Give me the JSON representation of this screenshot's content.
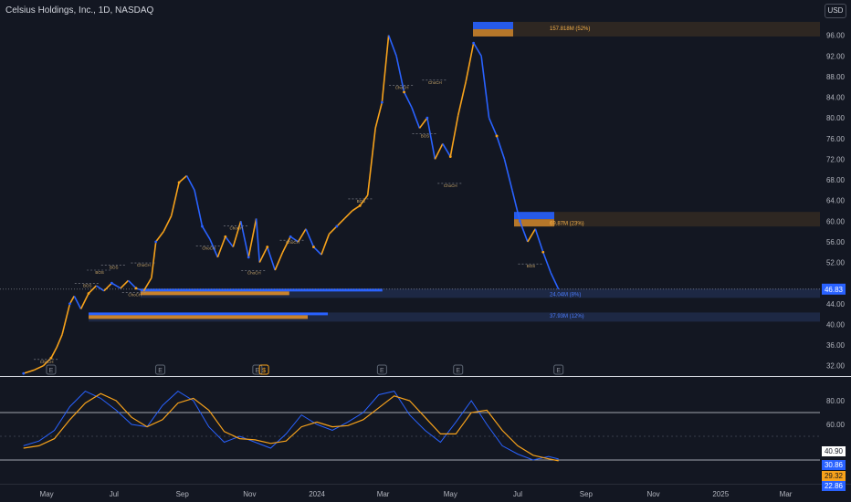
{
  "header": {
    "title": "Celsius Holdings, Inc., 1D, NASDAQ",
    "currency": "USD"
  },
  "chart_data": [
    {
      "type": "line",
      "title": "Celsius Holdings, Inc., 1D, NASDAQ",
      "x_ticks": [
        "May",
        "Jul",
        "Sep",
        "Nov",
        "2024",
        "Mar",
        "May",
        "Jul",
        "Sep",
        "Nov",
        "2025",
        "Mar"
      ],
      "y_ticks": [
        "96.00",
        "92.00",
        "88.00",
        "84.00",
        "80.00",
        "76.00",
        "72.00",
        "68.00",
        "64.00",
        "60.00",
        "56.00",
        "52.00",
        "48.00",
        "44.00",
        "40.00",
        "36.00",
        "32.00"
      ],
      "ylim": [
        30,
        100
      ],
      "last_price_label": "46.83",
      "last_price": 46.83,
      "colors": {
        "up": "#f7a21b",
        "down": "#2962ff",
        "bg": "#131722",
        "grid_text": "#b2b5be",
        "last": "#2962ff"
      },
      "price_series": [
        [
          "2023-04-10",
          30.5
        ],
        [
          "2023-04-20",
          31.2
        ],
        [
          "2023-04-28",
          32.0
        ],
        [
          "2023-05-05",
          33.5
        ],
        [
          "2023-05-10",
          35.5
        ],
        [
          "2023-05-15",
          38.0
        ],
        [
          "2023-05-22",
          44.0
        ],
        [
          "2023-05-26",
          45.5
        ],
        [
          "2023-06-01",
          43.0
        ],
        [
          "2023-06-08",
          46.0
        ],
        [
          "2023-06-15",
          47.5
        ],
        [
          "2023-06-22",
          46.5
        ],
        [
          "2023-06-29",
          48.0
        ],
        [
          "2023-07-07",
          47.0
        ],
        [
          "2023-07-14",
          48.5
        ],
        [
          "2023-07-21",
          47.0
        ],
        [
          "2023-07-28",
          46.5
        ],
        [
          "2023-08-04",
          49.0
        ],
        [
          "2023-08-08",
          56.0
        ],
        [
          "2023-08-15",
          58.0
        ],
        [
          "2023-08-22",
          61.0
        ],
        [
          "2023-08-29",
          67.5
        ],
        [
          "2023-09-05",
          68.8
        ],
        [
          "2023-09-12",
          66.0
        ],
        [
          "2023-09-19",
          59.0
        ],
        [
          "2023-09-26",
          56.5
        ],
        [
          "2023-10-03",
          53.0
        ],
        [
          "2023-10-10",
          57.0
        ],
        [
          "2023-10-17",
          55.0
        ],
        [
          "2023-10-24",
          60.0
        ],
        [
          "2023-10-31",
          53.0
        ],
        [
          "2023-11-07",
          60.5
        ],
        [
          "2023-11-10",
          52.0
        ],
        [
          "2023-11-17",
          55.0
        ],
        [
          "2023-11-24",
          50.5
        ],
        [
          "2023-12-01",
          54.0
        ],
        [
          "2023-12-08",
          57.0
        ],
        [
          "2023-12-15",
          56.0
        ],
        [
          "2023-12-22",
          58.5
        ],
        [
          "2023-12-29",
          55.0
        ],
        [
          "2024-01-05",
          53.5
        ],
        [
          "2024-01-12",
          57.5
        ],
        [
          "2024-01-19",
          59.0
        ],
        [
          "2024-01-26",
          60.5
        ],
        [
          "2024-02-02",
          62.0
        ],
        [
          "2024-02-09",
          63.0
        ],
        [
          "2024-02-16",
          65.0
        ],
        [
          "2024-02-23",
          78.0
        ],
        [
          "2024-02-29",
          83.0
        ],
        [
          "2024-03-06",
          96.0
        ],
        [
          "2024-03-13",
          92.0
        ],
        [
          "2024-03-20",
          85.0
        ],
        [
          "2024-03-27",
          82.0
        ],
        [
          "2024-04-03",
          78.0
        ],
        [
          "2024-04-10",
          80.0
        ],
        [
          "2024-04-17",
          72.0
        ],
        [
          "2024-04-24",
          75.0
        ],
        [
          "2024-05-01",
          72.5
        ],
        [
          "2024-05-08",
          80.5
        ],
        [
          "2024-05-15",
          87.0
        ],
        [
          "2024-05-22",
          94.5
        ],
        [
          "2024-05-29",
          92.0
        ],
        [
          "2024-06-05",
          80.0
        ],
        [
          "2024-06-12",
          76.5
        ],
        [
          "2024-06-19",
          72.0
        ],
        [
          "2024-06-26",
          66.0
        ],
        [
          "2024-07-03",
          60.0
        ],
        [
          "2024-07-10",
          56.0
        ],
        [
          "2024-07-17",
          58.5
        ],
        [
          "2024-07-24",
          54.0
        ],
        [
          "2024-07-31",
          50.0
        ],
        [
          "2024-08-07",
          46.83
        ]
      ],
      "annotations": [
        {
          "text": "157.818M (52%)",
          "date": "2024-05-24",
          "price": 97.5
        },
        {
          "text": "69.87M (23%)",
          "date": "2024-07-18",
          "price": 59.8
        },
        {
          "text": "24.04M (8%)",
          "date": "2024-08-10",
          "price": 46.0
        },
        {
          "text": "37.93M (12%)",
          "date": "2024-08-10",
          "price": 41.8
        }
      ],
      "structure_labels": [
        {
          "text": "ChoCH",
          "date": "2023-05-01",
          "price": 32.5
        },
        {
          "text": "BOS",
          "date": "2023-06-07",
          "price": 47.2
        },
        {
          "text": "BOS",
          "date": "2023-06-18",
          "price": 49.8
        },
        {
          "text": "BOS",
          "date": "2023-07-01",
          "price": 50.8
        },
        {
          "text": "ChoCH",
          "date": "2023-07-28",
          "price": 51.2
        },
        {
          "text": "ChoCH",
          "date": "2023-07-20",
          "price": 45.5
        },
        {
          "text": "ChoCH",
          "date": "2023-09-25",
          "price": 54.5
        },
        {
          "text": "ChoCH",
          "date": "2023-10-20",
          "price": 58.4
        },
        {
          "text": "ChoCH",
          "date": "2023-11-05",
          "price": 49.7
        },
        {
          "text": "ChoCH",
          "date": "2023-12-10",
          "price": 55.6
        },
        {
          "text": "BOS",
          "date": "2024-02-10",
          "price": 63.6
        },
        {
          "text": "ChoCH",
          "date": "2024-03-18",
          "price": 85.6
        },
        {
          "text": "ChoCH",
          "date": "2024-04-17",
          "price": 86.6
        },
        {
          "text": "BOS",
          "date": "2024-04-08",
          "price": 76.2
        },
        {
          "text": "ChoCH",
          "date": "2024-05-01",
          "price": 66.6
        },
        {
          "text": "BOS",
          "date": "2024-07-13",
          "price": 51.0
        }
      ],
      "volume_profile": [
        {
          "price": 97.0,
          "up": 22,
          "down": 25
        },
        {
          "price": 60.2,
          "up": 8,
          "down": 10
        },
        {
          "price": 46.2,
          "up": 110,
          "down": 180
        },
        {
          "price": 41.6,
          "up": 150,
          "down": 180
        }
      ],
      "event_markers": [
        {
          "label": "E",
          "date": "2023-05-05"
        },
        {
          "label": "E",
          "date": "2023-08-12"
        },
        {
          "label": "E",
          "date": "2023-11-08"
        },
        {
          "label": "$",
          "date": "2023-11-14"
        },
        {
          "label": "E",
          "date": "2024-02-29"
        },
        {
          "label": "E",
          "date": "2024-05-08"
        },
        {
          "label": "E",
          "date": "2024-08-07"
        }
      ]
    },
    {
      "type": "line",
      "ylim": [
        10,
        100
      ],
      "y_ticks": [
        "80.00",
        "60.00"
      ],
      "levels": [
        70,
        30
      ],
      "value_labels": [
        {
          "text": "40.90",
          "value": 40.9,
          "color": "#ffffff",
          "text_color": "#131722"
        },
        {
          "text": "30.86",
          "value": 30.86,
          "color": "#2962ff",
          "text_color": "#ffffff"
        },
        {
          "text": "29.32",
          "value": 29.32,
          "color": "#f7a21b",
          "text_color": "#131722"
        },
        {
          "text": "22.86",
          "value": 22.86,
          "color": "#2962ff",
          "text_color": "#ffffff"
        }
      ],
      "series": [
        {
          "values": [
            [
              "2023-04-10",
              42
            ],
            [
              "2023-04-24",
              46
            ],
            [
              "2023-05-08",
              55
            ],
            [
              "2023-05-22",
              75
            ],
            [
              "2023-06-05",
              88
            ],
            [
              "2023-06-19",
              82
            ],
            [
              "2023-07-03",
              72
            ],
            [
              "2023-07-17",
              60
            ],
            [
              "2023-07-31",
              58
            ],
            [
              "2023-08-14",
              76
            ],
            [
              "2023-08-28",
              88
            ],
            [
              "2023-09-11",
              80
            ],
            [
              "2023-09-25",
              58
            ],
            [
              "2023-10-09",
              45
            ],
            [
              "2023-10-23",
              50
            ],
            [
              "2023-11-06",
              45
            ],
            [
              "2023-11-20",
              40
            ],
            [
              "2023-12-04",
              52
            ],
            [
              "2023-12-18",
              68
            ],
            [
              "2024-01-01",
              60
            ],
            [
              "2024-01-15",
              55
            ],
            [
              "2024-01-29",
              62
            ],
            [
              "2024-02-12",
              70
            ],
            [
              "2024-02-26",
              85
            ],
            [
              "2024-03-11",
              88
            ],
            [
              "2024-03-25",
              68
            ],
            [
              "2024-04-08",
              55
            ],
            [
              "2024-04-22",
              45
            ],
            [
              "2024-05-06",
              62
            ],
            [
              "2024-05-20",
              80
            ],
            [
              "2024-06-03",
              60
            ],
            [
              "2024-06-17",
              42
            ],
            [
              "2024-07-01",
              35
            ],
            [
              "2024-07-15",
              30
            ],
            [
              "2024-07-29",
              33
            ],
            [
              "2024-08-07",
              30.86
            ]
          ]
        },
        {
          "values": [
            [
              "2023-04-10",
              40
            ],
            [
              "2023-04-24",
              42
            ],
            [
              "2023-05-08",
              48
            ],
            [
              "2023-05-22",
              64
            ],
            [
              "2023-06-05",
              78
            ],
            [
              "2023-06-19",
              86
            ],
            [
              "2023-07-03",
              80
            ],
            [
              "2023-07-17",
              66
            ],
            [
              "2023-07-31",
              58
            ],
            [
              "2023-08-14",
              64
            ],
            [
              "2023-08-28",
              78
            ],
            [
              "2023-09-11",
              82
            ],
            [
              "2023-09-25",
              72
            ],
            [
              "2023-10-09",
              54
            ],
            [
              "2023-10-23",
              48
            ],
            [
              "2023-11-06",
              47
            ],
            [
              "2023-11-20",
              44
            ],
            [
              "2023-12-04",
              46
            ],
            [
              "2023-12-18",
              58
            ],
            [
              "2024-01-01",
              62
            ],
            [
              "2024-01-15",
              58
            ],
            [
              "2024-01-29",
              59
            ],
            [
              "2024-02-12",
              64
            ],
            [
              "2024-02-26",
              74
            ],
            [
              "2024-03-11",
              84
            ],
            [
              "2024-03-25",
              80
            ],
            [
              "2024-04-08",
              66
            ],
            [
              "2024-04-22",
              52
            ],
            [
              "2024-05-06",
              52
            ],
            [
              "2024-05-20",
              70
            ],
            [
              "2024-06-03",
              72
            ],
            [
              "2024-06-17",
              55
            ],
            [
              "2024-07-01",
              42
            ],
            [
              "2024-07-15",
              34
            ],
            [
              "2024-07-29",
              31
            ],
            [
              "2024-08-07",
              29.32
            ]
          ]
        }
      ]
    }
  ]
}
